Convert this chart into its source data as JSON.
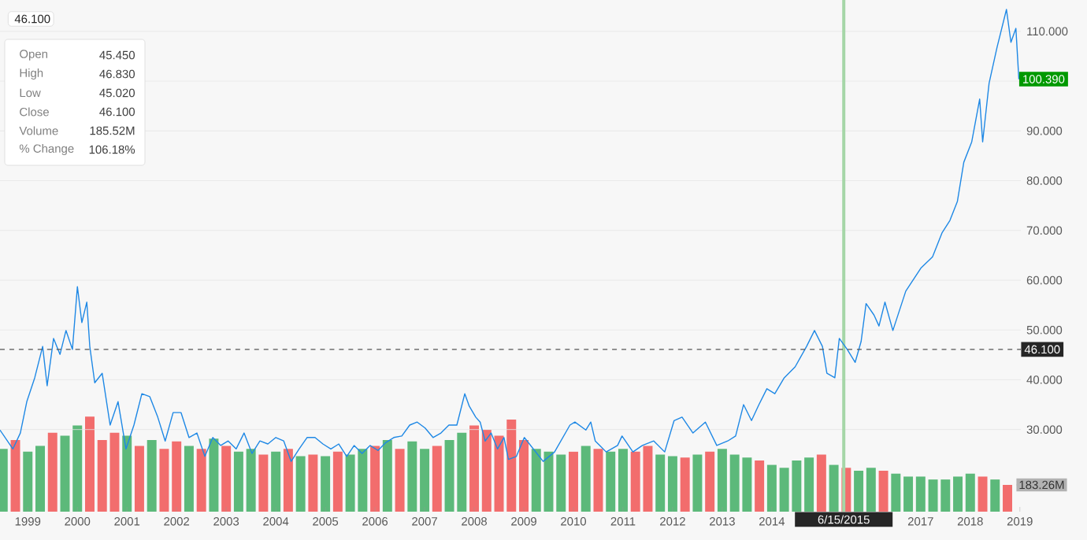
{
  "chart_data": {
    "type": "line",
    "xlim": [
      1998.44,
      2019.02
    ],
    "xticks": [
      1999,
      2000,
      2001,
      2002,
      2003,
      2004,
      2005,
      2006,
      2007,
      2008,
      2009,
      2010,
      2011,
      2012,
      2013,
      2014,
      2017,
      2018,
      2019
    ],
    "ylim": [
      13.5,
      116.3
    ],
    "yticks": [
      {
        "value": 30,
        "label": "30.000"
      },
      {
        "value": 40,
        "label": "40.000"
      },
      {
        "value": 50,
        "label": "50.000"
      },
      {
        "value": 60,
        "label": "60.000"
      },
      {
        "value": 70,
        "label": "70.000"
      },
      {
        "value": 80,
        "label": "80.000"
      },
      {
        "value": 90,
        "label": "90.000"
      },
      {
        "value": 100,
        "label": null
      },
      {
        "value": 110,
        "label": "110.000"
      }
    ],
    "y2lim": [
      0,
      3500
    ],
    "y2ticks": [
      {
        "value": 183.26,
        "label": "183.26M"
      }
    ],
    "grid": "y",
    "series": [
      {
        "type": "bar",
        "axis": "y2",
        "x": [
          1998.5,
          1998.75,
          1999,
          1999.25,
          1999.5,
          1999.75,
          2000,
          2000.25,
          2000.5,
          2000.75,
          2001,
          2001.25,
          2001.5,
          2001.75,
          2002,
          2002.25,
          2002.5,
          2002.75,
          2003,
          2003.25,
          2003.5,
          2003.75,
          2004,
          2004.25,
          2004.5,
          2004.75,
          2005,
          2005.25,
          2005.5,
          2005.75,
          2006,
          2006.25,
          2006.5,
          2006.75,
          2007,
          2007.25,
          2007.5,
          2007.75,
          2008,
          2008.25,
          2008.5,
          2008.75,
          2009,
          2009.25,
          2009.5,
          2009.75,
          2010,
          2010.25,
          2010.5,
          2010.75,
          2011,
          2011.25,
          2011.5,
          2011.75,
          2012,
          2012.25,
          2012.5,
          2012.75,
          2013,
          2013.25,
          2013.5,
          2013.75,
          2014,
          2014.25,
          2014.5,
          2014.75,
          2015,
          2015.25,
          2015.5,
          2015.75,
          2016,
          2016.25,
          2016.5,
          2016.75,
          2017,
          2017.25,
          2017.5,
          2017.75,
          2018,
          2018.25,
          2018.5,
          2018.75
        ],
        "values": [
          430,
          490,
          410,
          450,
          540,
          520,
          590,
          650,
          490,
          540,
          520,
          450,
          490,
          430,
          480,
          450,
          430,
          500,
          450,
          410,
          430,
          390,
          410,
          430,
          380,
          390,
          380,
          410,
          390,
          430,
          450,
          490,
          430,
          480,
          430,
          450,
          490,
          540,
          590,
          560,
          520,
          630,
          490,
          430,
          410,
          390,
          410,
          450,
          430,
          410,
          430,
          410,
          450,
          390,
          380,
          370,
          390,
          410,
          430,
          390,
          370,
          350,
          320,
          300,
          350,
          370,
          390,
          320,
          300,
          280,
          300,
          280,
          260,
          240,
          240,
          220,
          220,
          240,
          260,
          240,
          220,
          183.26
        ],
        "colors": [
          "#5cb97a",
          "#f26d6d",
          "#5cb97a",
          "#5cb97a",
          "#f26d6d",
          "#5cb97a",
          "#5cb97a",
          "#f26d6d",
          "#f26d6d",
          "#f26d6d",
          "#5cb97a",
          "#f26d6d",
          "#5cb97a",
          "#f26d6d",
          "#f26d6d",
          "#5cb97a",
          "#f26d6d",
          "#5cb97a",
          "#f26d6d",
          "#5cb97a",
          "#5cb97a",
          "#f26d6d",
          "#5cb97a",
          "#f26d6d",
          "#5cb97a",
          "#f26d6d",
          "#5cb97a",
          "#f26d6d",
          "#5cb97a",
          "#5cb97a",
          "#f26d6d",
          "#5cb97a",
          "#f26d6d",
          "#5cb97a",
          "#5cb97a",
          "#f26d6d",
          "#5cb97a",
          "#5cb97a",
          "#f26d6d",
          "#f26d6d",
          "#f26d6d",
          "#f26d6d",
          "#f26d6d",
          "#5cb97a",
          "#5cb97a",
          "#5cb97a",
          "#f26d6d",
          "#5cb97a",
          "#f26d6d",
          "#5cb97a",
          "#5cb97a",
          "#f26d6d",
          "#f26d6d",
          "#5cb97a",
          "#5cb97a",
          "#f26d6d",
          "#5cb97a",
          "#f26d6d",
          "#5cb97a",
          "#5cb97a",
          "#5cb97a",
          "#f26d6d",
          "#5cb97a",
          "#5cb97a",
          "#5cb97a",
          "#5cb97a",
          "#f26d6d",
          "#5cb97a",
          "#f26d6d",
          "#5cb97a",
          "#5cb97a",
          "#f26d6d",
          "#5cb97a",
          "#5cb97a",
          "#5cb97a",
          "#5cb97a",
          "#5cb97a",
          "#5cb97a",
          "#5cb97a",
          "#f26d6d",
          "#5cb97a",
          "#f26d6d"
        ]
      },
      {
        "color": "#1e88e5",
        "x": [
          1998.44,
          1998.7,
          1998.85,
          1998.98,
          1999.14,
          1999.3,
          1999.39,
          1999.52,
          1999.65,
          1999.77,
          1999.9,
          2000.0,
          2000.09,
          2000.19,
          2000.25,
          2000.35,
          2000.5,
          2000.66,
          2000.82,
          2000.98,
          2001.14,
          2001.3,
          2001.46,
          2001.62,
          2001.77,
          2001.93,
          2002.09,
          2002.25,
          2002.41,
          2002.57,
          2002.73,
          2002.89,
          2003.04,
          2003.2,
          2003.36,
          2003.52,
          2003.68,
          2003.84,
          2004.0,
          2004.16,
          2004.31,
          2004.47,
          2004.63,
          2004.79,
          2004.95,
          2005.11,
          2005.27,
          2005.43,
          2005.58,
          2005.74,
          2005.9,
          2006.06,
          2006.22,
          2006.38,
          2006.54,
          2006.7,
          2006.85,
          2007.01,
          2007.17,
          2007.33,
          2007.49,
          2007.65,
          2007.81,
          2007.9,
          2008.03,
          2008.12,
          2008.22,
          2008.34,
          2008.47,
          2008.6,
          2008.69,
          2008.85,
          2009.01,
          2009.39,
          2009.62,
          2009.93,
          2010.03,
          2010.25,
          2010.35,
          2010.44,
          2010.66,
          2010.89,
          2010.98,
          2011.2,
          2011.39,
          2011.62,
          2011.84,
          2012.03,
          2012.19,
          2012.41,
          2012.66,
          2012.89,
          2013.11,
          2013.27,
          2013.43,
          2013.59,
          2013.74,
          2013.9,
          2014.06,
          2014.25,
          2014.47,
          2014.7,
          2014.86,
          2015.02,
          2015.11,
          2015.27,
          2015.36,
          2015.52,
          2015.68,
          2015.8,
          2015.9,
          2016.06,
          2016.16,
          2016.28,
          2016.44,
          2016.7,
          2017.01,
          2017.24,
          2017.43,
          2017.59,
          2017.74,
          2017.87,
          2018.03,
          2018.19,
          2018.25,
          2018.38,
          2018.54,
          2018.73,
          2018.82,
          2018.92,
          2018.98
        ],
        "values": [
          29.9,
          26.1,
          29.3,
          35.6,
          40.4,
          46.7,
          38.8,
          48.3,
          45.1,
          49.9,
          46.1,
          58.7,
          51.5,
          55.6,
          46.7,
          39.4,
          41.3,
          30.9,
          35.6,
          26.1,
          30.9,
          37.2,
          36.6,
          32.5,
          27.7,
          33.4,
          33.4,
          28.4,
          29.3,
          24.6,
          28.4,
          26.8,
          27.7,
          26.1,
          29.3,
          25.2,
          27.7,
          27.1,
          28.4,
          27.7,
          23.6,
          26.1,
          28.4,
          28.4,
          27.1,
          26.1,
          27.1,
          24.6,
          26.8,
          25.2,
          26.8,
          25.8,
          27.4,
          28.4,
          28.7,
          30.9,
          31.5,
          30.3,
          28.4,
          29.3,
          30.9,
          30.9,
          37.2,
          34.7,
          32.5,
          31.5,
          27.7,
          29.3,
          26.1,
          28.4,
          24.0,
          24.6,
          28.4,
          23.6,
          25.5,
          30.9,
          31.5,
          29.9,
          31.5,
          27.7,
          25.5,
          26.8,
          28.7,
          25.5,
          26.8,
          27.7,
          25.5,
          31.8,
          32.5,
          29.3,
          31.5,
          26.8,
          27.7,
          28.7,
          35.0,
          31.8,
          35.0,
          38.2,
          37.2,
          40.4,
          42.6,
          46.7,
          49.9,
          46.7,
          41.3,
          40.4,
          48.3,
          46.1,
          43.5,
          47.7,
          55.3,
          53.0,
          50.8,
          55.6,
          49.9,
          57.8,
          62.5,
          64.7,
          69.5,
          72.0,
          75.8,
          83.7,
          87.8,
          96.4,
          87.8,
          99.6,
          106.8,
          114.4,
          107.8,
          110.6,
          100.39
        ]
      }
    ],
    "ref_lines": [
      {
        "axis": "x",
        "value": 2015.45,
        "label": "6/15/2015",
        "color": "#a5d6a7"
      },
      {
        "axis": "y",
        "value": 46.1,
        "label": "46.100",
        "color": "#555555",
        "line_style": "dashed"
      }
    ],
    "annotations": [
      "46.100",
      "Open",
      "45.450",
      "High",
      "46.830",
      "Low",
      "45.020",
      "Close",
      "46.100",
      "Volume",
      "185.52M",
      "% Change",
      "106.18%",
      {
        "text": "100.390",
        "x": 2018.98,
        "y": 100.39
      }
    ]
  }
}
